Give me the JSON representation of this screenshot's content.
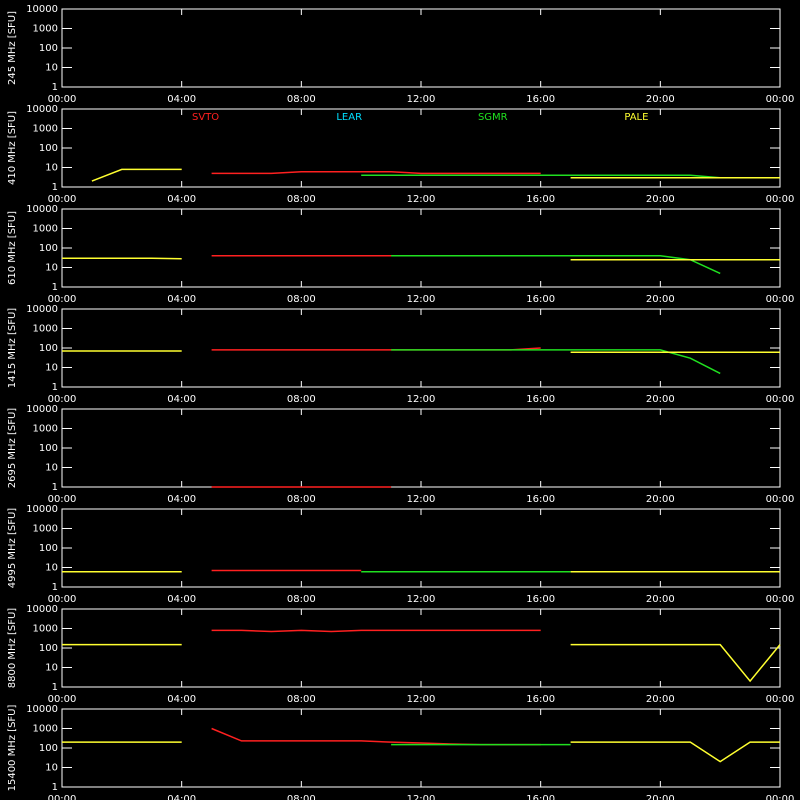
{
  "chart_data": [
    {
      "type": "line",
      "ylabel": "245 MHz [SFU]",
      "log": true,
      "ylim": [
        1,
        10000
      ],
      "yticks": [
        1,
        10,
        100,
        1000,
        10000
      ],
      "xlim": [
        0,
        24
      ],
      "xticks": [
        {
          "value": 0,
          "label": "00:00"
        },
        {
          "value": 4,
          "label": "04:00"
        },
        {
          "value": 8,
          "label": "08:00"
        },
        {
          "value": 12,
          "label": "12:00"
        },
        {
          "value": 16,
          "label": "16:00"
        },
        {
          "value": 20,
          "label": "20:00"
        },
        {
          "value": 24,
          "label": "00:00"
        }
      ],
      "x": [
        0,
        1,
        2,
        3,
        4,
        5,
        6,
        7,
        8,
        9,
        10,
        11,
        12,
        13,
        14,
        15,
        16,
        17,
        18,
        19,
        20,
        21,
        22,
        23,
        24
      ],
      "series": []
    },
    {
      "type": "line",
      "ylabel": "410 MHz [SFU]",
      "log": true,
      "ylim": [
        1,
        10000
      ],
      "yticks": [
        1,
        10,
        100,
        1000,
        10000
      ],
      "xlim": [
        0,
        24
      ],
      "xticks": [
        {
          "value": 0,
          "label": "00:00"
        },
        {
          "value": 4,
          "label": "04:00"
        },
        {
          "value": 8,
          "label": "08:00"
        },
        {
          "value": 12,
          "label": "12:00"
        },
        {
          "value": 16,
          "label": "16:00"
        },
        {
          "value": 20,
          "label": "20:00"
        },
        {
          "value": 24,
          "label": "00:00"
        }
      ],
      "x": [
        0,
        1,
        2,
        3,
        4,
        5,
        6,
        7,
        8,
        9,
        10,
        11,
        12,
        13,
        14,
        15,
        16,
        17,
        18,
        19,
        20,
        21,
        22,
        23,
        24
      ],
      "series": [
        {
          "name": "SVTO",
          "color": "#ff2020",
          "values": [
            null,
            null,
            null,
            null,
            null,
            5,
            5,
            5,
            6,
            6,
            6,
            6,
            5,
            5,
            5,
            5,
            5,
            null,
            null,
            null,
            null,
            null,
            null,
            null,
            null
          ]
        },
        {
          "name": "LEAR",
          "color": "#00e0ff",
          "values": [
            null,
            null,
            null,
            null,
            null,
            null,
            null,
            null,
            null,
            null,
            null,
            null,
            null,
            null,
            null,
            null,
            null,
            null,
            null,
            null,
            null,
            null,
            null,
            null,
            null
          ]
        },
        {
          "name": "SGMR",
          "color": "#20e020",
          "values": [
            null,
            null,
            null,
            null,
            null,
            null,
            null,
            null,
            null,
            null,
            4,
            4,
            4,
            4,
            4,
            4,
            4,
            4,
            4,
            4,
            4,
            4,
            3,
            null,
            null
          ]
        },
        {
          "name": "PALE",
          "color": "#ffff30",
          "values": [
            null,
            2,
            8,
            8,
            8,
            null,
            null,
            null,
            null,
            null,
            null,
            null,
            null,
            null,
            null,
            null,
            null,
            3,
            3,
            3,
            3,
            3,
            3,
            3,
            3
          ]
        }
      ]
    },
    {
      "type": "line",
      "ylabel": "610 MHz [SFU]",
      "log": true,
      "ylim": [
        1,
        10000
      ],
      "yticks": [
        1,
        10,
        100,
        1000,
        10000
      ],
      "xlim": [
        0,
        24
      ],
      "xticks": [
        {
          "value": 0,
          "label": "00:00"
        },
        {
          "value": 4,
          "label": "04:00"
        },
        {
          "value": 8,
          "label": "08:00"
        },
        {
          "value": 12,
          "label": "12:00"
        },
        {
          "value": 16,
          "label": "16:00"
        },
        {
          "value": 20,
          "label": "20:00"
        },
        {
          "value": 24,
          "label": "00:00"
        }
      ],
      "x": [
        0,
        1,
        2,
        3,
        4,
        5,
        6,
        7,
        8,
        9,
        10,
        11,
        12,
        13,
        14,
        15,
        16,
        17,
        18,
        19,
        20,
        21,
        22,
        23,
        24
      ],
      "series": [
        {
          "color": "#ff2020",
          "values": [
            null,
            null,
            null,
            null,
            null,
            40,
            40,
            40,
            40,
            40,
            40,
            40,
            40,
            40,
            40,
            40,
            40,
            null,
            null,
            null,
            null,
            null,
            null,
            null,
            null
          ]
        },
        {
          "color": "#20e020",
          "values": [
            null,
            null,
            null,
            null,
            null,
            null,
            null,
            null,
            null,
            null,
            null,
            40,
            40,
            40,
            40,
            40,
            40,
            40,
            40,
            40,
            40,
            25,
            5,
            null,
            null
          ]
        },
        {
          "color": "#ffff30",
          "values": [
            30,
            30,
            30,
            30,
            28,
            null,
            null,
            null,
            null,
            null,
            null,
            null,
            null,
            null,
            null,
            null,
            null,
            25,
            25,
            25,
            25,
            25,
            25,
            25,
            25
          ]
        }
      ]
    },
    {
      "type": "line",
      "ylabel": "1415 MHz [SFU]",
      "log": true,
      "ylim": [
        1,
        10000
      ],
      "yticks": [
        1,
        10,
        100,
        1000,
        10000
      ],
      "xlim": [
        0,
        24
      ],
      "xticks": [
        {
          "value": 0,
          "label": "00:00"
        },
        {
          "value": 4,
          "label": "04:00"
        },
        {
          "value": 8,
          "label": "08:00"
        },
        {
          "value": 12,
          "label": "12:00"
        },
        {
          "value": 16,
          "label": "16:00"
        },
        {
          "value": 20,
          "label": "20:00"
        },
        {
          "value": 24,
          "label": "00:00"
        }
      ],
      "x": [
        0,
        1,
        2,
        3,
        4,
        5,
        6,
        7,
        8,
        9,
        10,
        11,
        12,
        13,
        14,
        15,
        16,
        17,
        18,
        19,
        20,
        21,
        22,
        23,
        24
      ],
      "series": [
        {
          "color": "#ff2020",
          "values": [
            null,
            null,
            null,
            null,
            null,
            80,
            80,
            80,
            80,
            80,
            80,
            80,
            80,
            80,
            80,
            80,
            100,
            null,
            null,
            null,
            null,
            null,
            null,
            null,
            null
          ]
        },
        {
          "color": "#20e020",
          "values": [
            null,
            null,
            null,
            null,
            null,
            null,
            null,
            null,
            null,
            null,
            null,
            80,
            80,
            80,
            80,
            80,
            80,
            80,
            80,
            80,
            80,
            30,
            5,
            null,
            null
          ]
        },
        {
          "color": "#ffff30",
          "values": [
            70,
            70,
            70,
            70,
            70,
            null,
            null,
            null,
            null,
            null,
            null,
            null,
            null,
            null,
            null,
            null,
            null,
            60,
            60,
            60,
            60,
            60,
            60,
            60,
            60
          ]
        }
      ]
    },
    {
      "type": "line",
      "ylabel": "2695 MHz [SFU]",
      "log": true,
      "ylim": [
        1,
        10000
      ],
      "yticks": [
        1,
        10,
        100,
        1000,
        10000
      ],
      "xlim": [
        0,
        24
      ],
      "xticks": [
        {
          "value": 0,
          "label": "00:00"
        },
        {
          "value": 4,
          "label": "04:00"
        },
        {
          "value": 8,
          "label": "08:00"
        },
        {
          "value": 12,
          "label": "12:00"
        },
        {
          "value": 16,
          "label": "16:00"
        },
        {
          "value": 20,
          "label": "20:00"
        },
        {
          "value": 24,
          "label": "00:00"
        }
      ],
      "x": [
        0,
        1,
        2,
        3,
        4,
        5,
        6,
        7,
        8,
        9,
        10,
        11,
        12,
        13,
        14,
        15,
        16,
        17,
        18,
        19,
        20,
        21,
        22,
        23,
        24
      ],
      "series": [
        {
          "color": "#ff2020",
          "values": [
            null,
            null,
            null,
            null,
            null,
            1,
            1,
            1,
            1,
            1,
            1,
            1,
            null,
            null,
            null,
            null,
            null,
            null,
            null,
            null,
            null,
            null,
            null,
            null,
            null
          ]
        }
      ]
    },
    {
      "type": "line",
      "ylabel": "4995 MHz [SFU]",
      "log": true,
      "ylim": [
        1,
        10000
      ],
      "yticks": [
        1,
        10,
        100,
        1000,
        10000
      ],
      "xlim": [
        0,
        24
      ],
      "xticks": [
        {
          "value": 0,
          "label": "00:00"
        },
        {
          "value": 4,
          "label": "04:00"
        },
        {
          "value": 8,
          "label": "08:00"
        },
        {
          "value": 12,
          "label": "12:00"
        },
        {
          "value": 16,
          "label": "16:00"
        },
        {
          "value": 20,
          "label": "20:00"
        },
        {
          "value": 24,
          "label": "00:00"
        }
      ],
      "x": [
        0,
        1,
        2,
        3,
        4,
        5,
        6,
        7,
        8,
        9,
        10,
        11,
        12,
        13,
        14,
        15,
        16,
        17,
        18,
        19,
        20,
        21,
        22,
        23,
        24
      ],
      "series": [
        {
          "color": "#ffff30",
          "values": [
            6,
            6,
            6,
            6,
            6,
            null,
            null,
            null,
            null,
            null,
            null,
            null,
            null,
            null,
            null,
            null,
            null,
            6,
            6,
            6,
            6,
            6,
            6,
            6,
            6
          ]
        },
        {
          "color": "#ff2020",
          "values": [
            null,
            null,
            null,
            null,
            null,
            7,
            7,
            7,
            7,
            7,
            7,
            null,
            null,
            null,
            null,
            null,
            null,
            null,
            null,
            null,
            null,
            null,
            null,
            null,
            null
          ]
        },
        {
          "color": "#20e020",
          "values": [
            null,
            null,
            null,
            null,
            null,
            null,
            null,
            null,
            null,
            null,
            6,
            6,
            6,
            6,
            6,
            6,
            6,
            6,
            null,
            null,
            null,
            null,
            null,
            null,
            null
          ]
        }
      ]
    },
    {
      "type": "line",
      "ylabel": "8800 MHz [SFU]",
      "log": true,
      "ylim": [
        1,
        10000
      ],
      "yticks": [
        1,
        10,
        100,
        1000,
        10000
      ],
      "xlim": [
        0,
        24
      ],
      "xticks": [
        {
          "value": 0,
          "label": "00:00"
        },
        {
          "value": 4,
          "label": "04:00"
        },
        {
          "value": 8,
          "label": "08:00"
        },
        {
          "value": 12,
          "label": "12:00"
        },
        {
          "value": 16,
          "label": "16:00"
        },
        {
          "value": 20,
          "label": "20:00"
        },
        {
          "value": 24,
          "label": "00:00"
        }
      ],
      "x": [
        0,
        1,
        2,
        3,
        4,
        5,
        6,
        7,
        8,
        9,
        10,
        11,
        12,
        13,
        14,
        15,
        16,
        17,
        18,
        19,
        20,
        21,
        22,
        23,
        24
      ],
      "series": [
        {
          "color": "#ffff30",
          "values": [
            150,
            150,
            150,
            150,
            150,
            null,
            null,
            null,
            null,
            null,
            null,
            null,
            null,
            null,
            null,
            null,
            null,
            150,
            150,
            150,
            150,
            150,
            150,
            2,
            150
          ]
        },
        {
          "color": "#ff2020",
          "values": [
            null,
            null,
            null,
            null,
            null,
            800,
            800,
            700,
            800,
            700,
            800,
            800,
            800,
            800,
            800,
            800,
            800,
            null,
            null,
            null,
            null,
            null,
            null,
            null,
            null
          ]
        }
      ]
    },
    {
      "type": "line",
      "ylabel": "15400 MHz [SFU]",
      "log": true,
      "ylim": [
        1,
        10000
      ],
      "yticks": [
        1,
        10,
        100,
        1000,
        10000
      ],
      "xlim": [
        0,
        24
      ],
      "xticks": [
        {
          "value": 0,
          "label": "00:00"
        },
        {
          "value": 4,
          "label": "04:00"
        },
        {
          "value": 8,
          "label": "08:00"
        },
        {
          "value": 12,
          "label": "12:00"
        },
        {
          "value": 16,
          "label": "16:00"
        },
        {
          "value": 20,
          "label": "20:00"
        },
        {
          "value": 24,
          "label": "00:00"
        }
      ],
      "x": [
        0,
        1,
        2,
        3,
        4,
        5,
        6,
        7,
        8,
        9,
        10,
        11,
        12,
        13,
        14,
        15,
        16,
        17,
        18,
        19,
        20,
        21,
        22,
        23,
        24
      ],
      "series": [
        {
          "color": "#ffff30",
          "values": [
            200,
            200,
            200,
            200,
            200,
            null,
            null,
            null,
            null,
            null,
            null,
            null,
            null,
            null,
            null,
            null,
            null,
            200,
            200,
            200,
            200,
            200,
            20,
            200,
            200
          ]
        },
        {
          "color": "#ff2020",
          "values": [
            null,
            null,
            null,
            null,
            null,
            1000,
            230,
            230,
            230,
            230,
            230,
            200,
            180,
            160,
            150,
            150,
            150,
            null,
            null,
            null,
            null,
            null,
            null,
            null,
            null
          ]
        },
        {
          "color": "#20e020",
          "values": [
            null,
            null,
            null,
            null,
            null,
            null,
            null,
            null,
            null,
            null,
            null,
            150,
            150,
            150,
            150,
            150,
            150,
            150,
            null,
            null,
            null,
            null,
            null,
            null,
            null
          ]
        }
      ]
    }
  ]
}
